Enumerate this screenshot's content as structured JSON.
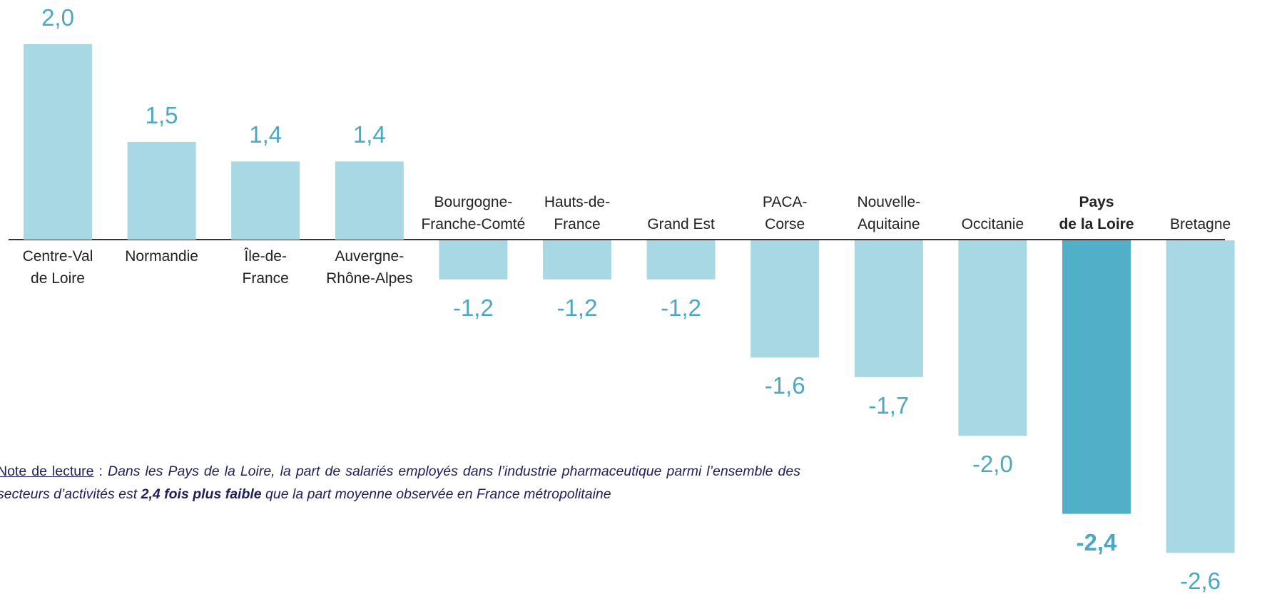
{
  "chart_data": {
    "type": "bar",
    "categories": [
      "Centre-Val\nde Loire",
      "Normandie",
      "Île-de-\nFrance",
      "Auvergne-\nRhône-Alpes",
      "Bourgogne-\nFranche-Comté",
      "Hauts-de-\nFrance",
      "Grand Est",
      "PACA-\nCorse",
      "Nouvelle-\nAquitaine",
      "Occitanie",
      "Pays\nde la Loire",
      "Bretagne"
    ],
    "values": [
      2.0,
      1.5,
      1.4,
      1.4,
      -1.2,
      -1.2,
      -1.2,
      -1.6,
      -1.7,
      -2.0,
      -2.4,
      -2.6
    ],
    "value_labels": [
      "2,0",
      "1,5",
      "1,4",
      "1,4",
      "-1,2",
      "-1,2",
      "-1,2",
      "-1,6",
      "-1,7",
      "-2,0",
      "-2,4",
      "-2,6"
    ],
    "colors": [
      "#a8d8e4",
      "#a8d8e4",
      "#a8d8e4",
      "#a8d8e4",
      "#a8d8e4",
      "#a8d8e4",
      "#a8d8e4",
      "#a8d8e4",
      "#a8d8e4",
      "#a8d8e4",
      "#52afc8",
      "#a8d8e4"
    ],
    "highlight": "Pays\nde la Loire"
  },
  "note": [
    "Note de lecture",
    " : ",
    "Dans les Pays de la Loire, la part de salariés employés dans l’industrie pharmaceutique parmi l’ensemble des secteurs d’activités est ",
    "2,4 fois plus faible",
    " que la part moyenne observée en France métropolitaine"
  ]
}
